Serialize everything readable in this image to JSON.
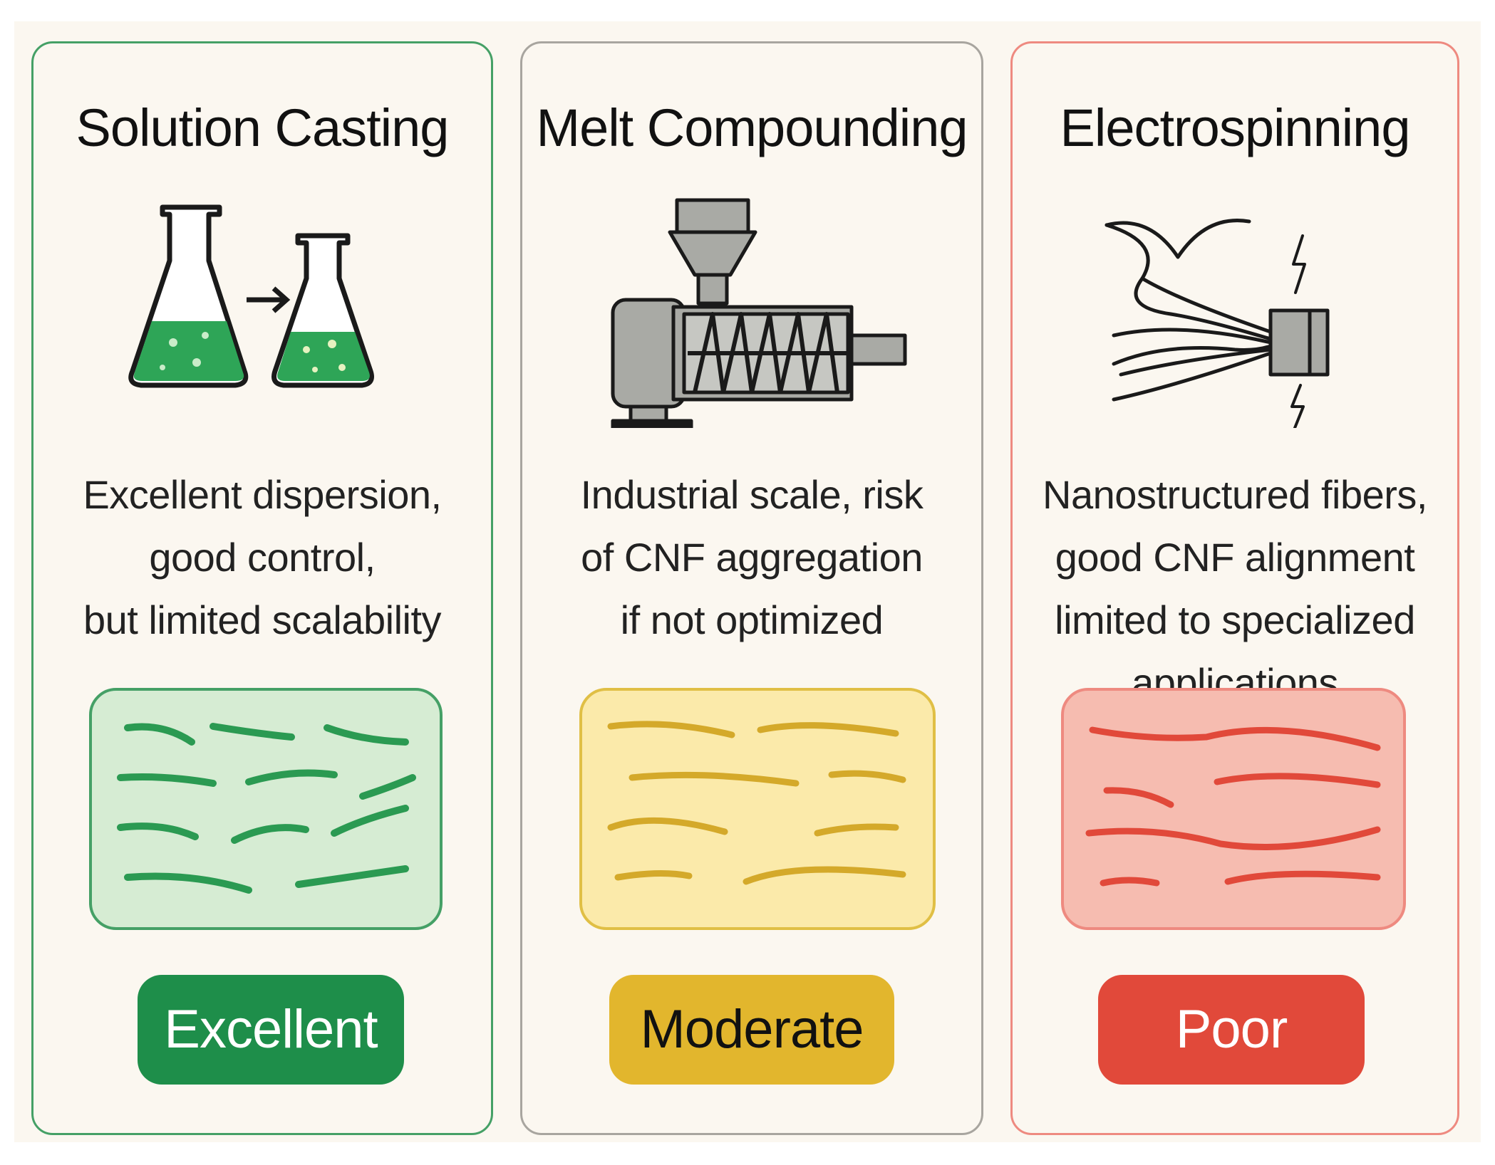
{
  "colors": {
    "excellent": "#1e8e4a",
    "moderate": "#e2b62d",
    "poor": "#e1493a",
    "icon_gray": "#a9aaa5",
    "background": "#fbf7f0"
  },
  "panels": [
    {
      "title": "Solution Casting",
      "icon": "flask-transfer-icon",
      "description": [
        "Excellent dispersion,",
        "good control,",
        "but limited scalability"
      ],
      "badge": "Excellent",
      "dispersion_level": "excellent"
    },
    {
      "title": "Melt Compounding",
      "icon": "extruder-icon",
      "description": [
        "Industrial scale, risk",
        "of CNF aggregation",
        "if not optimized"
      ],
      "badge": "Moderate",
      "dispersion_level": "moderate"
    },
    {
      "title": "Electrospinning",
      "icon": "electrospinning-icon",
      "description": [
        "Nanostructured fibers,",
        "good CNF alignment",
        "limited to specialized",
        "applications"
      ],
      "badge": "Poor",
      "dispersion_level": "poor"
    }
  ]
}
